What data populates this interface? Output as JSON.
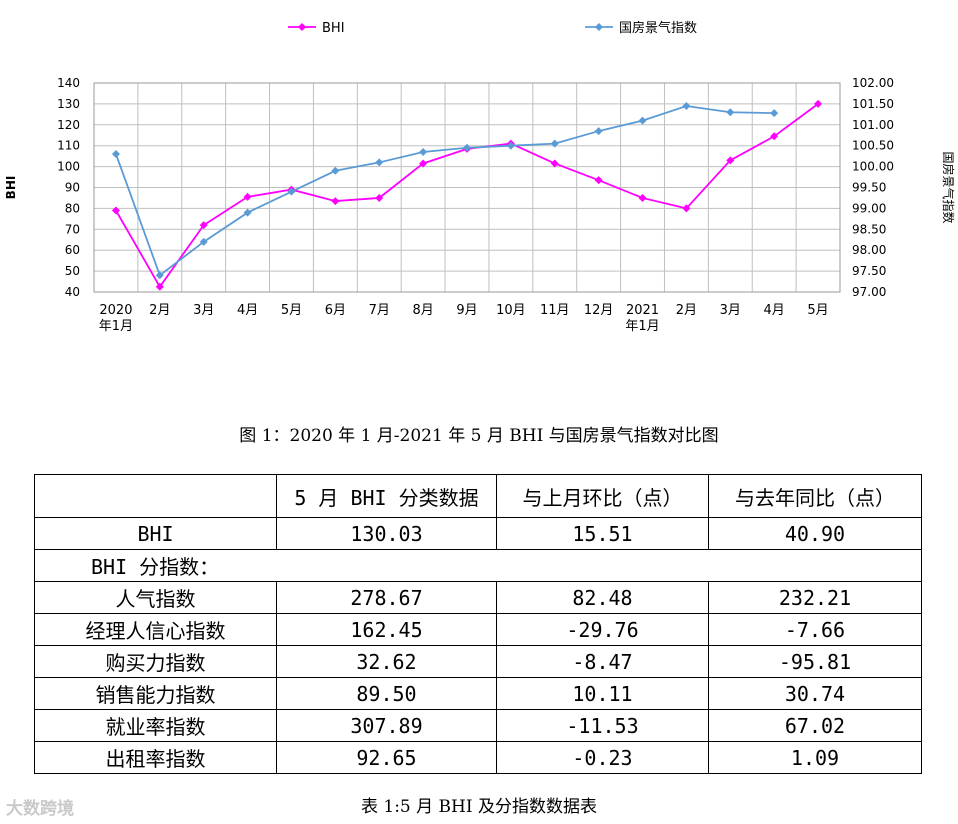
{
  "chart_data": {
    "type": "line",
    "categories": [
      "2020\n年1月",
      "2月",
      "3月",
      "4月",
      "5月",
      "6月",
      "7月",
      "8月",
      "9月",
      "10月",
      "11月",
      "12月",
      "2021\n年1月",
      "2月",
      "3月",
      "4月",
      "5月"
    ],
    "series": [
      {
        "name": "BHI",
        "axis": "left",
        "color": "#ff00ff",
        "values": [
          79,
          42.5,
          72,
          85.5,
          89,
          83.5,
          85,
          101.5,
          108.5,
          111,
          101.5,
          93.5,
          85,
          80,
          103,
          114.5,
          130
        ]
      },
      {
        "name": "国房景气指数",
        "axis": "right",
        "color": "#5b9bd5",
        "values": [
          100.3,
          97.4,
          98.2,
          98.9,
          99.4,
          99.9,
          100.1,
          100.35,
          100.45,
          100.5,
          100.55,
          100.85,
          101.1,
          101.45,
          101.3,
          101.28,
          null
        ]
      }
    ],
    "y_left": {
      "label": "BHI",
      "min": 40,
      "max": 140,
      "step": 10,
      "ticks": [
        "40",
        "50",
        "60",
        "70",
        "80",
        "90",
        "100",
        "110",
        "120",
        "130",
        "140"
      ]
    },
    "y_right": {
      "label": "国房景气指数",
      "min": 97,
      "max": 102,
      "step": 0.5,
      "ticks": [
        "97.00",
        "97.50",
        "98.00",
        "98.50",
        "99.00",
        "99.50",
        "100.00",
        "100.50",
        "101.00",
        "101.50",
        "102.00"
      ]
    },
    "grid": true,
    "legend": "top"
  },
  "figure_caption": "图 1：2020 年 1 月-2021 年 5 月 BHI 与国房景气指数对比图",
  "table": {
    "headers": [
      "",
      "5 月 BHI 分类数据",
      "与上月环比（点）",
      "与去年同比（点）"
    ],
    "bhi_row": [
      "BHI",
      "130.03",
      "15.51",
      "40.90"
    ],
    "sub_title": "BHI 分指数：",
    "rows": [
      [
        "人气指数",
        "278.67",
        "82.48",
        "232.21"
      ],
      [
        "经理人信心指数",
        "162.45",
        "-29.76",
        "-7.66"
      ],
      [
        "购买力指数",
        "32.62",
        "-8.47",
        "-95.81"
      ],
      [
        "销售能力指数",
        "89.50",
        "10.11",
        "30.74"
      ],
      [
        "就业率指数",
        "307.89",
        "-11.53",
        "67.02"
      ],
      [
        "出租率指数",
        "92.65",
        "-0.23",
        "1.09"
      ]
    ]
  },
  "table_caption": "表 1:5 月 BHI 及分指数数据表",
  "watermark": "大数跨境"
}
